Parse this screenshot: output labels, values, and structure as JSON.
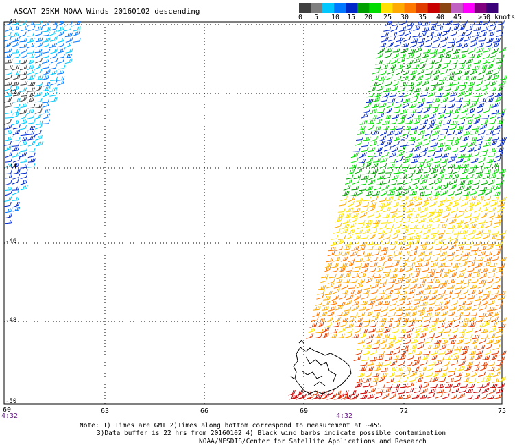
{
  "title": "ASCAT 25KM NOAA Winds 20160102 descending",
  "legend": {
    "labels": [
      "0",
      "5",
      "10",
      "15",
      "20",
      "25",
      "30",
      "35",
      "40",
      "45"
    ],
    "unit_label": ">50 knots",
    "colors": [
      "#404040",
      "#7f7f7f",
      "#00c8ff",
      "#0078ff",
      "#0028c8",
      "#00a000",
      "#00dc00",
      "#ffe000",
      "#ffaa00",
      "#ff7800",
      "#e03c00",
      "#c80000",
      "#8b4513",
      "#c060c0",
      "#ff00ff",
      "#800080",
      "#3c0078"
    ]
  },
  "axes": {
    "lat_labels": [
      "-40",
      "-42",
      "-44",
      "-46",
      "-48",
      "-50"
    ],
    "lon_labels": [
      "60",
      "63",
      "66",
      "69",
      "72",
      "75"
    ],
    "time_labels": [
      "4:32",
      "4:32"
    ]
  },
  "notes": {
    "line1": "Note: 1) Times are GMT 2)Times along bottom correspond to measurement at ~45S",
    "line2": "3)Data buffer is 22 hrs from 20160102 4) Black wind barbs indicate possible contamination",
    "credit": "NOAA/NESDIS/Center for Satellite Applications and Research"
  }
}
